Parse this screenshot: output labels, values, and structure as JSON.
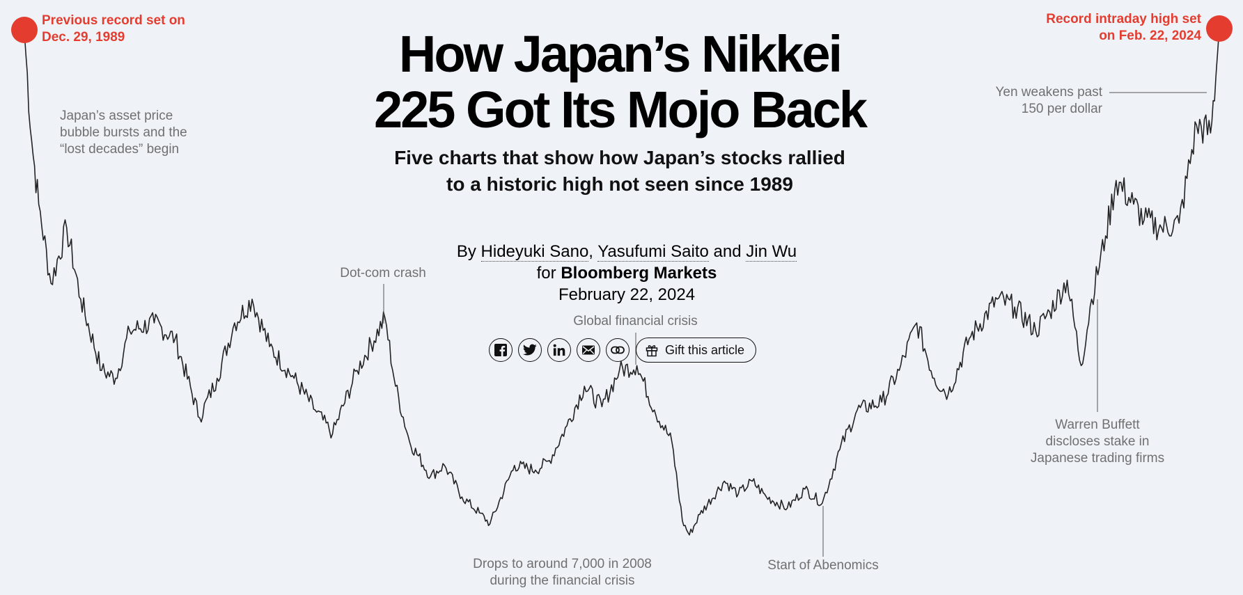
{
  "headline": {
    "line1": "How Japan’s Nikkei",
    "line2": "225 Got Its Mojo Back"
  },
  "subhead": {
    "line1": "Five charts that show how Japan’s stocks rallied",
    "line2": "to a historic high not seen since 1989"
  },
  "byline": {
    "by": "By",
    "authors": [
      "Hideyuki Sano",
      "Yasufumi Saito",
      "Jin Wu"
    ],
    "sep": ",",
    "and": "and",
    "for": "for",
    "publication": "Bloomberg Markets",
    "date": "February 22, 2024"
  },
  "share": {
    "icons": [
      "facebook-icon",
      "twitter-icon",
      "linkedin-icon",
      "email-icon",
      "link-icon"
    ],
    "gift_label": "Gift this article"
  },
  "annotations": {
    "previous_record": [
      "Previous record set on",
      "Dec. 29, 1989"
    ],
    "record_high": [
      "Record intraday high set",
      "on Feb. 22, 2024"
    ],
    "bubble": [
      "Japan’s asset price",
      "bubble bursts and the",
      "“lost decades” begin"
    ],
    "dotcom": [
      "Dot-com crash"
    ],
    "gfc": [
      "Global financial crisis"
    ],
    "drops": [
      "Drops to around 7,000 in 2008",
      "during the financial crisis"
    ],
    "abenomics": [
      "Start of Abenomics"
    ],
    "buffett": [
      "Warren Buffett",
      "discloses stake in",
      "Japanese trading firms"
    ],
    "yen": [
      "Yen weakens past",
      "150 per dollar"
    ]
  },
  "colors": {
    "background": "#eff3f8",
    "line": "#222222",
    "accent": "#e43d30",
    "annotation": "#707070"
  },
  "chart_data": {
    "type": "line",
    "title": "",
    "xlabel": "",
    "ylabel": "",
    "x_range": [
      1989.99,
      2024.15
    ],
    "y_range": [
      7000,
      39100
    ],
    "series": [
      {
        "x": [
          1989.99,
          1990.2,
          1990.4,
          1990.75,
          1991.2,
          1991.6,
          1992.2,
          1992.6,
          1993.0,
          1993.7,
          1994.3,
          1995.0,
          1995.5,
          1996.0,
          1996.5,
          1997.0,
          1997.7,
          1998.3,
          1998.8,
          1999.5,
          2000.3,
          2000.6,
          2001.0,
          2001.6,
          2002.0,
          2002.5,
          2003.0,
          2003.3,
          2004.0,
          2004.6,
          2005.0,
          2005.5,
          2006.0,
          2006.5,
          2007.0,
          2007.5,
          2008.0,
          2008.5,
          2008.8,
          2009.0,
          2009.3,
          2010.0,
          2010.4,
          2010.8,
          2011.2,
          2011.8,
          2012.3,
          2012.8,
          2013.3,
          2013.8,
          2014.5,
          2015.0,
          2015.5,
          2016.0,
          2016.4,
          2017.0,
          2017.8,
          2018.3,
          2018.9,
          2019.3,
          2019.8,
          2020.2,
          2020.5,
          2020.9,
          2021.2,
          2021.7,
          2022.0,
          2022.5,
          2023.0,
          2023.5,
          2023.9,
          2024.05,
          2024.15
        ],
        "y": [
          38900,
          32000,
          28000,
          23000,
          26500,
          22000,
          17500,
          17000,
          20000,
          20500,
          19500,
          14500,
          17000,
          20500,
          22000,
          19000,
          17000,
          15000,
          13500,
          17500,
          20800,
          16500,
          13000,
          10800,
          11500,
          9500,
          8500,
          7800,
          11500,
          11200,
          11800,
          14000,
          16500,
          15200,
          17500,
          17800,
          15000,
          13000,
          8000,
          7100,
          8400,
          10500,
          9700,
          10500,
          9500,
          8800,
          10000,
          9100,
          12500,
          15000,
          15500,
          17500,
          20500,
          17000,
          16000,
          19500,
          22000,
          21500,
          20000,
          21200,
          23200,
          17800,
          22000,
          26000,
          29500,
          28000,
          27000,
          26500,
          26800,
          33000,
          32500,
          36000,
          39100
        ]
      }
    ]
  }
}
